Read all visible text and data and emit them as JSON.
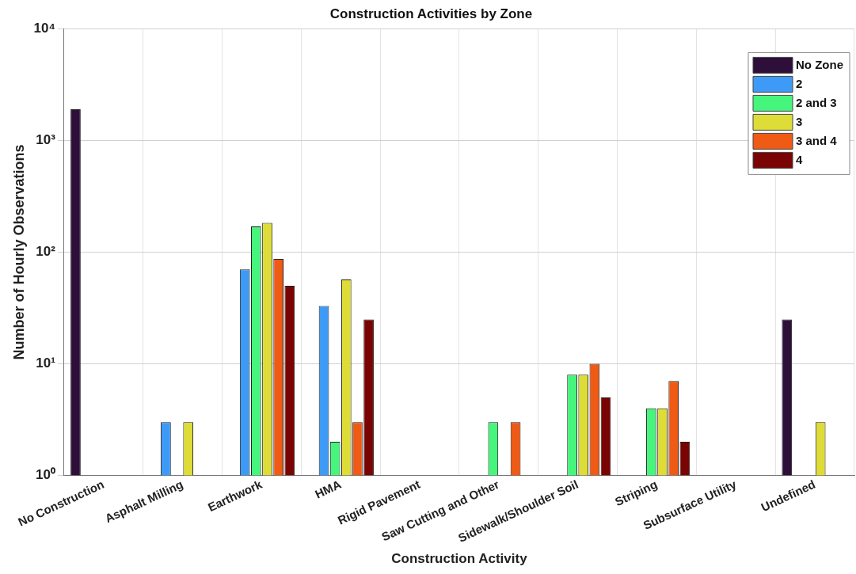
{
  "chart_data": {
    "type": "bar",
    "title": "Construction Activities by Zone",
    "xlabel": "Construction Activity",
    "ylabel": "Number of Hourly Observations",
    "categories": [
      "No Construction",
      "Asphalt Milling",
      "Earthwork",
      "HMA",
      "Rigid Pavement",
      "Saw Cutting and Other",
      "Sidewalk/Shoulder Soil",
      "Striping",
      "Subsurface Utility",
      "Undefined"
    ],
    "series": [
      {
        "name": "No Zone",
        "color": "#2e0f3a",
        "values": [
          1900,
          null,
          null,
          null,
          null,
          null,
          null,
          null,
          null,
          25
        ]
      },
      {
        "name": "2",
        "color": "#3d9bf7",
        "values": [
          null,
          3,
          70,
          33,
          null,
          null,
          null,
          null,
          null,
          null
        ]
      },
      {
        "name": "2 and 3",
        "color": "#46f57c",
        "values": [
          null,
          null,
          170,
          2,
          null,
          3,
          8,
          4,
          null,
          null
        ]
      },
      {
        "name": "3",
        "color": "#dedc36",
        "values": [
          null,
          3,
          183,
          57,
          null,
          null,
          8,
          4,
          null,
          3
        ]
      },
      {
        "name": "3 and 4",
        "color": "#ef5a14",
        "values": [
          null,
          null,
          87,
          3,
          null,
          3,
          10,
          7,
          null,
          null
        ]
      },
      {
        "name": "4",
        "color": "#7a0404",
        "values": [
          null,
          null,
          50,
          25,
          null,
          null,
          5,
          2,
          null,
          null
        ]
      }
    ],
    "log": "y",
    "ylim": [
      1,
      10000
    ],
    "yticks": [
      {
        "value": 1,
        "label": "10⁰"
      },
      {
        "value": 10,
        "label": "10¹"
      },
      {
        "value": 100,
        "label": "10²"
      },
      {
        "value": 1000,
        "label": "10³"
      },
      {
        "value": 10000,
        "label": "10⁴"
      }
    ],
    "grid": true,
    "legend": "top right"
  }
}
